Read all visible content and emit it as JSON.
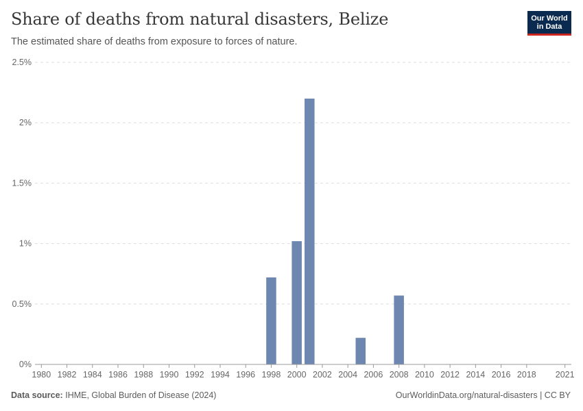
{
  "header": {
    "title": "Share of deaths from natural disasters, Belize",
    "subtitle": "The estimated share of deaths from exposure to forces of nature."
  },
  "logo": {
    "line1": "Our World",
    "line2": "in Data",
    "bg_color": "#0b2a4f",
    "accent_color": "#ce261e"
  },
  "footer": {
    "source_label": "Data source:",
    "source_text": "IHME, Global Burden of Disease (2024)",
    "credit": "OurWorldinData.org/natural-disasters | CC BY"
  },
  "chart_data": {
    "type": "bar",
    "title": "Share of deaths from natural disasters, Belize",
    "xlabel": "",
    "ylabel": "",
    "bar_color": "#6d87b0",
    "xlim": [
      1979.5,
      2021.5
    ],
    "ylim": [
      0,
      2.5
    ],
    "y_ticks": [
      0,
      0.5,
      1,
      1.5,
      2,
      2.5
    ],
    "y_tick_labels": [
      "0%",
      "0.5%",
      "1%",
      "1.5%",
      "2%",
      "2.5%"
    ],
    "x_ticks": [
      1980,
      1982,
      1984,
      1986,
      1988,
      1990,
      1992,
      1994,
      1996,
      1998,
      2000,
      2002,
      2004,
      2006,
      2008,
      2010,
      2012,
      2014,
      2016,
      2018,
      2021
    ],
    "x_tick_labels": [
      "1980",
      "1982",
      "1984",
      "1986",
      "1988",
      "1990",
      "1992",
      "1994",
      "1996",
      "1998",
      "2000",
      "2002",
      "2004",
      "2006",
      "2008",
      "2010",
      "2012",
      "2014",
      "2016",
      "2018",
      "2021"
    ],
    "grid": true,
    "series": [
      {
        "name": "Belize",
        "x": [
          1998,
          2000,
          2001,
          2005,
          2008
        ],
        "values": [
          0.72,
          1.02,
          2.2,
          0.22,
          0.57
        ]
      }
    ]
  }
}
